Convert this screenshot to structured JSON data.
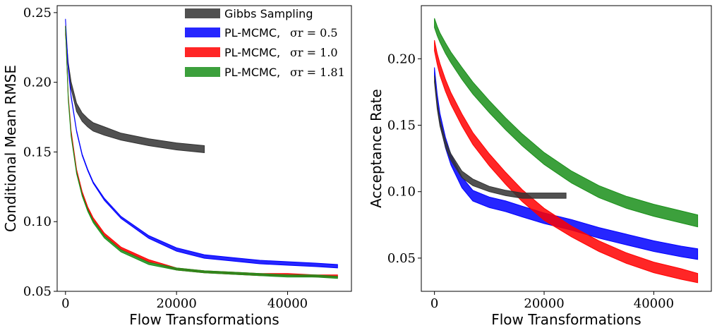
{
  "chart_data": [
    {
      "type": "line",
      "ylabel": "Conditional Mean RMSE",
      "xlabel": "Flow Transformations",
      "xlim": [
        -1500,
        51500
      ],
      "ylim": [
        0.05,
        0.255
      ],
      "xticks": [
        0,
        20000,
        40000
      ],
      "xtick_labels": [
        "0",
        "20000",
        "40000"
      ],
      "yticks": [
        0.05,
        0.1,
        0.15,
        0.2,
        0.25
      ],
      "ytick_labels": [
        "0.05",
        "0.10",
        "0.15",
        "0.20",
        "0.25"
      ],
      "grid": false,
      "legend_position": "top-right",
      "legend": [
        {
          "text": "Gibbs Sampling",
          "math": "",
          "color": "#333333"
        },
        {
          "text": "PL-MCMC,",
          "math": "σr = 0.5",
          "color": "#0000ff"
        },
        {
          "text": "PL-MCMC,",
          "math": "σr = 1.0",
          "color": "#ff0000"
        },
        {
          "text": "PL-MCMC,",
          "math": "σr = 1.81",
          "color": "#1a8f1a"
        }
      ],
      "series": [
        {
          "color": "#333333",
          "x": [
            0,
            500,
            1000,
            2000,
            3000,
            4000,
            5000,
            7000,
            10000,
            15000,
            20000,
            25000
          ],
          "y": [
            0.236,
            0.212,
            0.198,
            0.182,
            0.175,
            0.171,
            0.168,
            0.165,
            0.161,
            0.157,
            0.154,
            0.152
          ],
          "width": [
            0.004,
            0.004,
            0.005,
            0.006,
            0.006,
            0.006,
            0.006,
            0.006,
            0.005,
            0.005,
            0.005,
            0.005
          ]
        },
        {
          "color": "#0000ff",
          "x": [
            0,
            500,
            1000,
            2000,
            3000,
            4000,
            5000,
            7000,
            10000,
            15000,
            20000,
            25000,
            30000,
            35000,
            40000,
            45000,
            49000
          ],
          "y": [
            0.245,
            0.21,
            0.19,
            0.165,
            0.148,
            0.137,
            0.128,
            0.116,
            0.103,
            0.089,
            0.08,
            0.075,
            0.073,
            0.071,
            0.07,
            0.069,
            0.068
          ],
          "width": [
            0.001,
            0.001,
            0.001,
            0.001,
            0.001,
            0.001,
            0.001,
            0.0015,
            0.0015,
            0.002,
            0.0025,
            0.0025,
            0.0025,
            0.0025,
            0.0025,
            0.0025,
            0.0025
          ]
        },
        {
          "color": "#ff0000",
          "x": [
            0,
            500,
            1000,
            2000,
            3000,
            4000,
            5000,
            7000,
            10000,
            15000,
            20000,
            25000,
            30000,
            35000,
            40000,
            45000,
            49000
          ],
          "y": [
            0.24,
            0.19,
            0.165,
            0.137,
            0.121,
            0.11,
            0.102,
            0.091,
            0.081,
            0.072,
            0.066,
            0.064,
            0.063,
            0.062,
            0.062,
            0.061,
            0.061
          ],
          "width": [
            0.001,
            0.001,
            0.001,
            0.001,
            0.0012,
            0.0012,
            0.0015,
            0.0015,
            0.0015,
            0.0015,
            0.0015,
            0.0015,
            0.0015,
            0.0015,
            0.0015,
            0.0015,
            0.0015
          ]
        },
        {
          "color": "#1a8f1a",
          "x": [
            0,
            500,
            1000,
            2000,
            3000,
            4000,
            5000,
            7000,
            10000,
            15000,
            20000,
            25000,
            30000,
            35000,
            40000,
            45000,
            49000
          ],
          "y": [
            0.24,
            0.188,
            0.162,
            0.135,
            0.119,
            0.108,
            0.1,
            0.089,
            0.079,
            0.07,
            0.066,
            0.064,
            0.063,
            0.062,
            0.061,
            0.061,
            0.06
          ],
          "width": [
            0.001,
            0.001,
            0.001,
            0.001,
            0.0012,
            0.0012,
            0.0015,
            0.0015,
            0.0015,
            0.0015,
            0.0015,
            0.0015,
            0.0015,
            0.0015,
            0.0015,
            0.0015,
            0.0015
          ]
        }
      ]
    },
    {
      "type": "line",
      "ylabel": "Acceptance  Rate",
      "xlabel": "Flow Transformations",
      "xlim": [
        -2400,
        50500
      ],
      "ylim": [
        0.025,
        0.24
      ],
      "xticks": [
        0,
        20000,
        40000
      ],
      "xtick_labels": [
        "0",
        "20000",
        "40000"
      ],
      "yticks": [
        0.05,
        0.1,
        0.15,
        0.2
      ],
      "ytick_labels": [
        "0.05",
        "0.10",
        "0.15",
        "0.20"
      ],
      "grid": false,
      "series": [
        {
          "color": "#0000ff",
          "x": [
            0,
            500,
            1000,
            2000,
            3000,
            5000,
            7000,
            10000,
            13000,
            16000,
            20000,
            25000,
            30000,
            35000,
            40000,
            45000,
            48000
          ],
          "y": [
            0.19,
            0.17,
            0.155,
            0.137,
            0.124,
            0.107,
            0.097,
            0.092,
            0.089,
            0.085,
            0.08,
            0.075,
            0.069,
            0.064,
            0.059,
            0.055,
            0.053
          ],
          "width": [
            0.007,
            0.007,
            0.008,
            0.008,
            0.008,
            0.008,
            0.008,
            0.008,
            0.008,
            0.008,
            0.008,
            0.008,
            0.008,
            0.008,
            0.008,
            0.008,
            0.008
          ]
        },
        {
          "color": "#ff0000",
          "x": [
            0,
            500,
            1000,
            2000,
            3000,
            5000,
            7000,
            10000,
            13000,
            16000,
            20000,
            25000,
            30000,
            35000,
            40000,
            45000,
            48000
          ],
          "y": [
            0.21,
            0.2,
            0.192,
            0.18,
            0.17,
            0.154,
            0.14,
            0.124,
            0.11,
            0.097,
            0.083,
            0.07,
            0.059,
            0.05,
            0.043,
            0.038,
            0.035
          ],
          "width": [
            0.008,
            0.008,
            0.009,
            0.009,
            0.009,
            0.009,
            0.009,
            0.009,
            0.009,
            0.009,
            0.009,
            0.008,
            0.008,
            0.008,
            0.008,
            0.008,
            0.007
          ]
        },
        {
          "color": "#1a8f1a",
          "x": [
            0,
            500,
            1000,
            2000,
            3000,
            5000,
            7000,
            10000,
            13000,
            16000,
            20000,
            25000,
            30000,
            35000,
            40000,
            45000,
            48000
          ],
          "y": [
            0.227,
            0.221,
            0.216,
            0.208,
            0.201,
            0.189,
            0.178,
            0.164,
            0.151,
            0.139,
            0.125,
            0.111,
            0.1,
            0.092,
            0.086,
            0.081,
            0.078
          ],
          "width": [
            0.007,
            0.007,
            0.007,
            0.008,
            0.008,
            0.009,
            0.009,
            0.009,
            0.009,
            0.009,
            0.009,
            0.009,
            0.009,
            0.009,
            0.009,
            0.009,
            0.009
          ]
        },
        {
          "color": "#333333",
          "x": [
            0,
            500,
            1000,
            2000,
            3000,
            5000,
            7000,
            10000,
            13000,
            16000,
            20000,
            24000
          ],
          "y": [
            0.185,
            0.165,
            0.152,
            0.136,
            0.126,
            0.113,
            0.107,
            0.102,
            0.099,
            0.097,
            0.097,
            0.097
          ],
          "width": [
            0.005,
            0.005,
            0.005,
            0.005,
            0.005,
            0.005,
            0.005,
            0.004,
            0.004,
            0.004,
            0.004,
            0.004
          ]
        }
      ]
    }
  ]
}
